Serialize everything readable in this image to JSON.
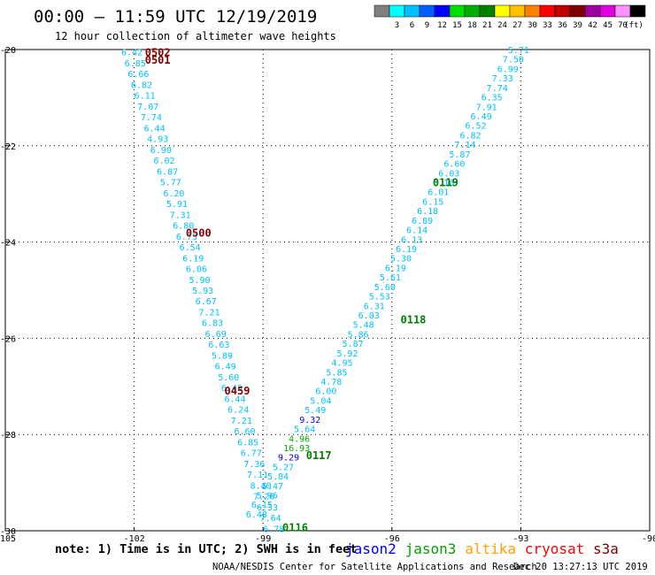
{
  "header": {
    "title": "00:00 — 11:59 UTC 12/19/2019",
    "subtitle": "12 hour collection of altimeter wave heights"
  },
  "legend": {
    "unit": "(ft)",
    "bins": [
      {
        "color": "#808080",
        "label": ""
      },
      {
        "color": "#00ffff",
        "label": "3"
      },
      {
        "color": "#00c0ff",
        "label": "6"
      },
      {
        "color": "#0060ff",
        "label": "9"
      },
      {
        "color": "#0000ff",
        "label": "12"
      },
      {
        "color": "#00e000",
        "label": "15"
      },
      {
        "color": "#00b000",
        "label": "18"
      },
      {
        "color": "#008000",
        "label": "21"
      },
      {
        "color": "#ffff00",
        "label": "24"
      },
      {
        "color": "#ffc000",
        "label": "27"
      },
      {
        "color": "#ff8000",
        "label": "30"
      },
      {
        "color": "#ff0000",
        "label": "33"
      },
      {
        "color": "#c00000",
        "label": "36"
      },
      {
        "color": "#800000",
        "label": "39"
      },
      {
        "color": "#a000a0",
        "label": "42"
      },
      {
        "color": "#e000e0",
        "label": "45"
      },
      {
        "color": "#ff90ff",
        "label": "70"
      },
      {
        "color": "#000000",
        "label": ""
      }
    ]
  },
  "map": {
    "lon_range": [
      -105,
      -90
    ],
    "lat_range": [
      -30,
      -20
    ],
    "x_ticks": [
      -105,
      -102,
      -99,
      -96,
      -93,
      -90
    ],
    "y_ticks": [
      -20,
      -22,
      -24,
      -26,
      -28,
      -30
    ],
    "x_tick_labels": [
      "-105",
      "-102",
      "-99",
      "-96",
      "-93",
      "-90"
    ],
    "y_tick_labels": [
      "-20",
      "-22",
      "-24",
      "-26",
      "-28",
      "-30"
    ]
  },
  "tracks": [
    {
      "satellite": "cryosat",
      "values": [
        "6.42",
        "6.85",
        "6.66",
        "6.82",
        "6.11",
        "7.07",
        "7.74",
        "6.44",
        "4.93",
        "6.90",
        "6.02",
        "6.87",
        "5.77",
        "6.20",
        "5.91",
        "7.31",
        "6.80",
        "6.75",
        "6.54",
        "6.19",
        "6.06",
        "5.90",
        "5.93",
        "6.67",
        "7.21",
        "6.83",
        "6.69",
        "6.63",
        "5.89",
        "6.49",
        "5.60",
        "6.43",
        "6.44",
        "6.24",
        "7.21",
        "6.60",
        "6.85",
        "6.77",
        "7.36",
        "7.11",
        "8.40",
        "7.20",
        "6.33",
        "7.64",
        "6.78"
      ],
      "value_colors": [
        "#00c0ff"
      ],
      "time_labels": [
        {
          "text": "0502",
          "lon": -101.75,
          "lat": -20.05
        },
        {
          "text": "0501",
          "lon": -101.75,
          "lat": -20.2
        },
        {
          "text": "0500",
          "lon": -100.8,
          "lat": -23.8
        },
        {
          "text": "0459",
          "lon": -99.9,
          "lat": -27.08
        }
      ],
      "time_color": "#800000"
    },
    {
      "satellite": "jason3",
      "values": [
        "5.71",
        "7.50",
        "6.99",
        "7.33",
        "7.74",
        "6.35",
        "7.91",
        "6.49",
        "6.52",
        "6.82",
        "7.14",
        "5.87",
        "6.60",
        "6.03",
        "6.16",
        "6.01",
        "6.15",
        "6.18",
        "6.89",
        "6.14",
        "6.13",
        "6.19",
        "5.30",
        "6.19",
        "5.61",
        "5.60",
        "5.53",
        "6.31",
        "6.03",
        "5.48",
        "5.86",
        "5.87",
        "5.92",
        "4.95",
        "5.85",
        "4.78",
        "6.00",
        "5.04",
        "5.49",
        "9.32",
        "5.64",
        "4.96",
        "16.93",
        "9.29",
        "5.27",
        "5.84",
        "5.47",
        "5.96",
        "6.15",
        "6.48"
      ],
      "value_colors": [
        "#00c0ff"
      ],
      "special": {
        "9.32": "#0000ff",
        "16.93": "#00b000",
        "9.29": "#0000ff",
        "4.96": "#00b000"
      },
      "time_labels": [
        {
          "text": "0119",
          "lon": -95.05,
          "lat": -22.75
        },
        {
          "text": "0118",
          "lon": -95.8,
          "lat": -25.6
        },
        {
          "text": "0117",
          "lon": -98.0,
          "lat": -28.42
        },
        {
          "text": "0116",
          "lon": -98.55,
          "lat": -29.92
        }
      ],
      "time_color": "#008000"
    }
  ],
  "footer": {
    "note": "note: 1) Time is in UTC; 2) SWH is in feet",
    "satellites": [
      {
        "name": "jason2",
        "color": "#0000ff"
      },
      {
        "name": "jason3",
        "color": "#00a000"
      },
      {
        "name": "altika",
        "color": "#ffa000"
      },
      {
        "name": "cryosat",
        "color": "#ff0000"
      },
      {
        "name": "s3a",
        "color": "#800000"
      }
    ],
    "credit": "NOAA/NESDIS Center for Satellite Applications and Research",
    "timestamp": "Dec 20 13:27:13 UTC 2019"
  }
}
